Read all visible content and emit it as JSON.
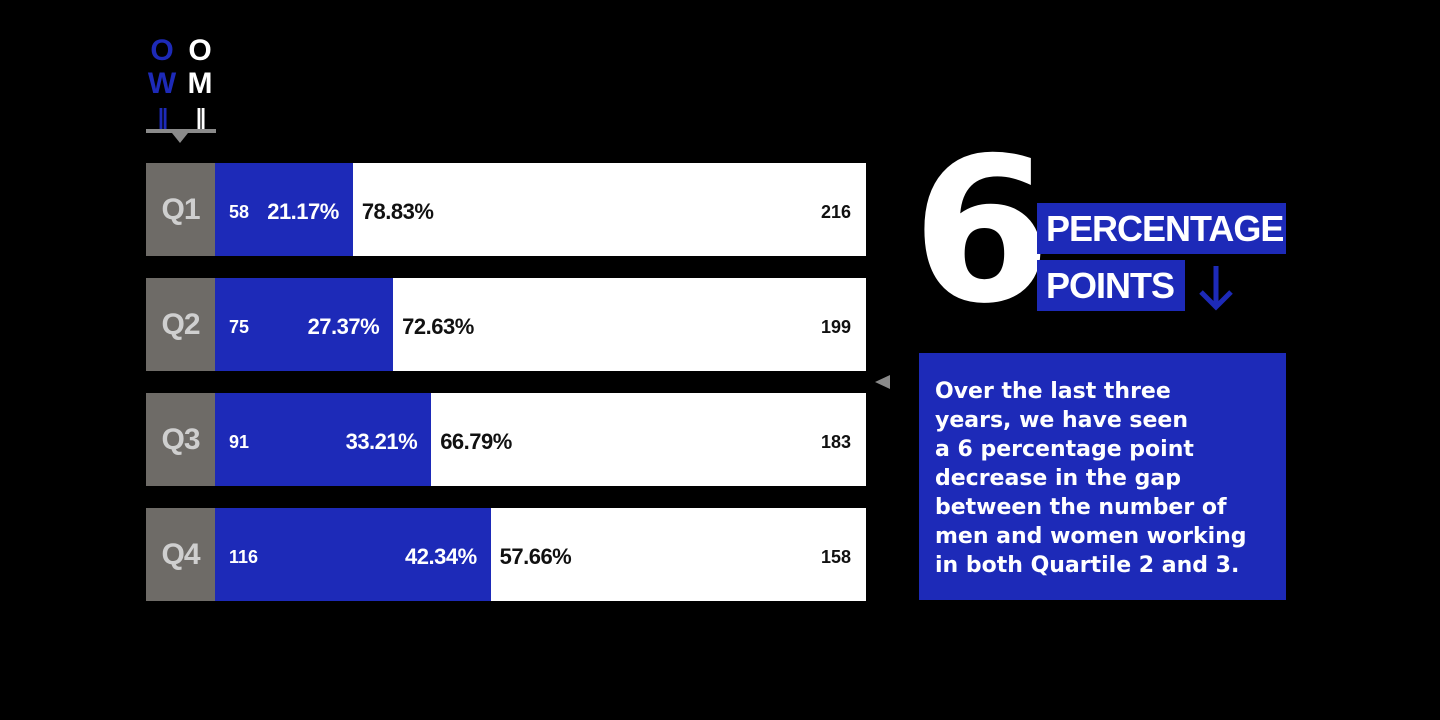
{
  "legend": {
    "women_symbol": "O\nW\n=",
    "men_symbol": "O\nM\n="
  },
  "chart_data": {
    "type": "bar",
    "stacked": true,
    "orientation": "horizontal",
    "categories": [
      "Q1",
      "Q2",
      "Q3",
      "Q4"
    ],
    "series": [
      {
        "counts": [
          58,
          75,
          91,
          116
        ],
        "percent_labels": [
          "21.17%",
          "27.37%",
          "33.21%",
          "42.34%"
        ],
        "percents": [
          21.17,
          27.37,
          33.21,
          42.34
        ],
        "color": "#1d2ab8"
      },
      {
        "counts": [
          216,
          199,
          183,
          158
        ],
        "percent_labels": [
          "78.83%",
          "72.63%",
          "66.79%",
          "57.66%"
        ],
        "percents": [
          78.83,
          72.63,
          66.79,
          57.66
        ],
        "color": "#ffffff"
      }
    ]
  },
  "highlight": {
    "number": "6",
    "line1": "PERCENTAGE",
    "line2": "POINTS",
    "arrow_icon": "arrow-down-icon"
  },
  "note": {
    "lines": [
      "Over the last three",
      "years, we have seen",
      "a 6 percentage point",
      "decrease in the gap",
      "between the number of",
      "men and women working",
      "in both Quartile 2 and 3."
    ]
  },
  "colors": {
    "background": "#000000",
    "accent_blue": "#1d2ab8",
    "quartile_gray": "#6e6b67"
  }
}
